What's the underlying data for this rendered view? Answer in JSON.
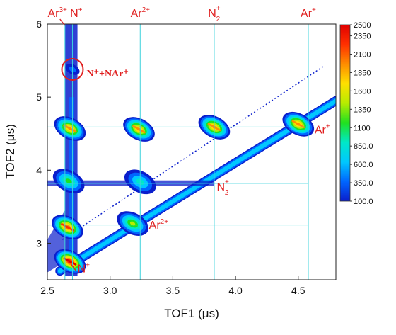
{
  "chart_data": {
    "type": "heatmap",
    "title": "",
    "xlabel": "TOF1 (μs)",
    "ylabel": "TOF2 (μs)",
    "xlim": [
      2.5,
      4.8
    ],
    "ylim": [
      2.5,
      6.0
    ],
    "x_ticks": [
      "2.5",
      "3.0",
      "3.5",
      "4.0",
      "4.5"
    ],
    "x_tick_values": [
      2.5,
      3.0,
      3.5,
      4.0,
      4.5
    ],
    "y_ticks": [
      "3",
      "4",
      "5",
      "6"
    ],
    "y_tick_values": [
      3,
      4,
      5,
      6
    ],
    "colorbar": {
      "labels": [
        "2500",
        "2350",
        "2100",
        "1850",
        "1600",
        "1350",
        "1100",
        "850.0",
        "600.0",
        "350.0",
        "100.0"
      ],
      "values": [
        2500,
        2350,
        2100,
        1850,
        1600,
        1350,
        1100,
        850,
        600,
        350,
        100
      ],
      "colors": [
        "#0a1ecc",
        "#0066ff",
        "#00c8ff",
        "#00e8c8",
        "#20e020",
        "#b8ec00",
        "#ffe000",
        "#ff8c00",
        "#ff3000",
        "#e00000"
      ]
    },
    "reference_lines": {
      "vertical_x": [
        2.64,
        2.7,
        3.24,
        3.83,
        4.58
      ],
      "horizontal_y": [
        4.59,
        3.82,
        3.25
      ],
      "color": "#3cd2dc"
    },
    "diagonal_band": {
      "start": [
        2.6,
        2.62
      ],
      "end": [
        4.8,
        4.95
      ]
    },
    "islands": [
      {
        "x": 2.68,
        "y": 2.75,
        "peak": 2500
      },
      {
        "x": 2.66,
        "y": 3.22,
        "peak": 2200
      },
      {
        "x": 2.68,
        "y": 4.57,
        "peak": 2000
      },
      {
        "x": 3.23,
        "y": 4.56,
        "peak": 2000
      },
      {
        "x": 3.83,
        "y": 4.59,
        "peak": 1900
      },
      {
        "x": 4.5,
        "y": 4.63,
        "peak": 1900
      },
      {
        "x": 3.18,
        "y": 3.27,
        "peak": 1400
      },
      {
        "x": 3.24,
        "y": 3.84,
        "peak": 900
      },
      {
        "x": 2.67,
        "y": 3.85,
        "peak": 1100
      },
      {
        "x": 2.7,
        "y": 5.38,
        "peak": 400
      }
    ],
    "annotations": {
      "top": [
        {
          "text": "Ar",
          "sup": "3+",
          "sub": "",
          "x": 2.58
        },
        {
          "text": "N",
          "sup": "+",
          "sub": "",
          "x": 2.73
        },
        {
          "text": "Ar",
          "sup": "2+",
          "sub": "",
          "x": 3.24
        },
        {
          "text": "N",
          "sup": "+",
          "sub": "2",
          "x": 3.83
        },
        {
          "text": "Ar",
          "sup": "+",
          "sub": "",
          "x": 4.58
        }
      ],
      "in_plot": [
        {
          "text": "Ar",
          "sup": "+",
          "sub": "",
          "x": 4.63,
          "y": 4.5
        },
        {
          "text": "N",
          "sup": "+",
          "sub": "2",
          "x": 3.85,
          "y": 3.72
        },
        {
          "text": "Ar",
          "sup": "2+",
          "sub": "",
          "x": 3.31,
          "y": 3.2
        },
        {
          "text": "N",
          "sup": "+",
          "sub": "",
          "x": 2.74,
          "y": 2.6
        }
      ],
      "circled": {
        "text": "N⁺+NAr⁺",
        "x": 2.7,
        "y": 5.38
      }
    }
  }
}
